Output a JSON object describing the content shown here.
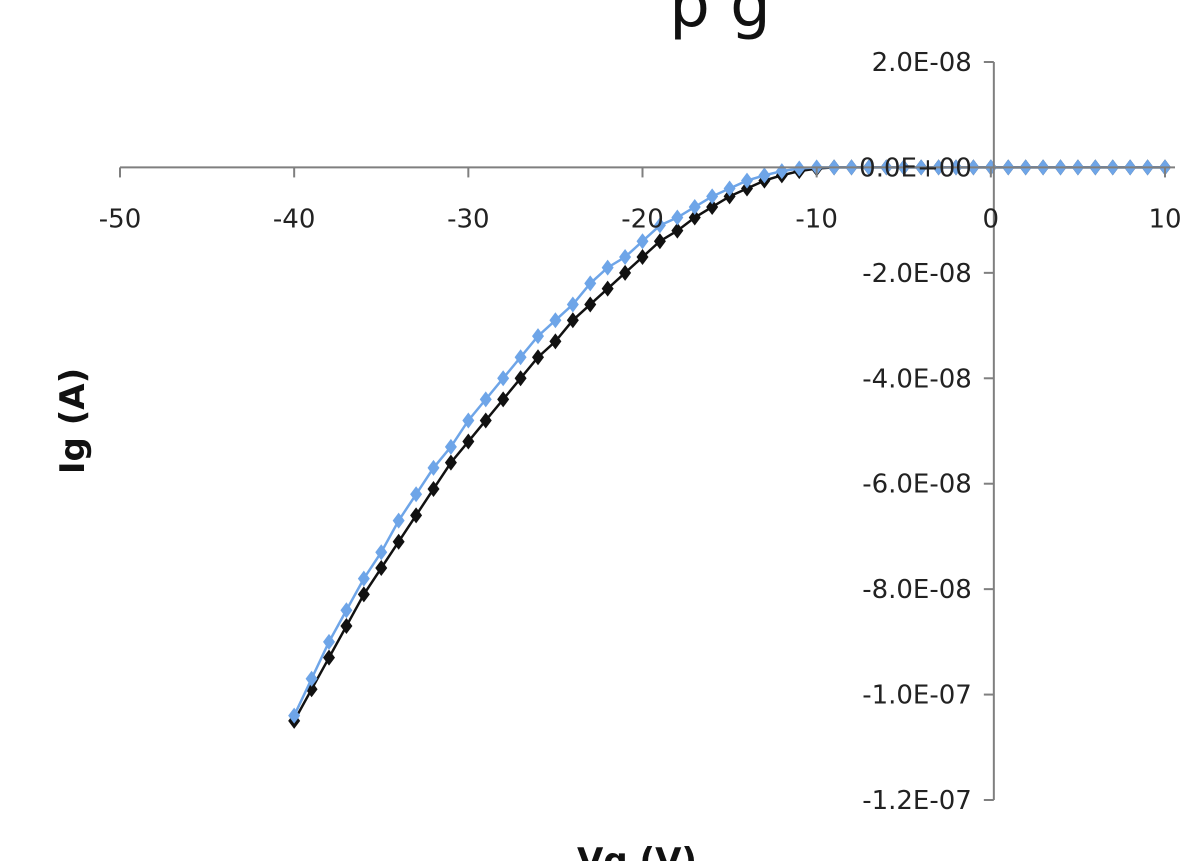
{
  "page": {
    "title_fragment": "p g"
  },
  "chart_data": {
    "type": "scatter",
    "title": "",
    "xlabel": "Vg (V)",
    "ylabel": "Ig (A)",
    "xlim": [
      -50,
      10
    ],
    "ylim": [
      -1.2e-07,
      2e-08
    ],
    "x_ticks": [
      -50,
      -40,
      -30,
      -20,
      -10,
      0,
      10
    ],
    "x_tick_labels": [
      "-50",
      "-40",
      "-30",
      "-20",
      "-10",
      "0",
      "10"
    ],
    "y_ticks": [
      2e-08,
      0,
      -2e-08,
      -4e-08,
      -6e-08,
      -8e-08,
      -1e-07,
      -1.2e-07
    ],
    "y_tick_labels": [
      "2.0E-08",
      "0.0E+00",
      "-2.0E-08",
      "-4.0E-08",
      "-6.0E-08",
      "-8.0E-08",
      "-1.0E-07",
      "-1.2E-07"
    ],
    "grid": false,
    "legend": "none",
    "series": [
      {
        "color": "#111111",
        "marker": "diamond",
        "x": [
          -40,
          -39,
          -38,
          -37,
          -36,
          -35,
          -34,
          -33,
          -32,
          -31,
          -30,
          -29,
          -28,
          -27,
          -26,
          -25,
          -24,
          -23,
          -22,
          -21,
          -20,
          -19,
          -18,
          -17,
          -16,
          -15,
          -14,
          -13,
          -12,
          -11,
          -10,
          -9,
          -8,
          -7,
          -6,
          -5,
          -4,
          -3,
          -2,
          -1,
          0,
          1,
          2,
          3,
          4,
          5,
          6,
          7,
          8,
          9,
          10
        ],
        "y": [
          -1.05e-07,
          -9.9e-08,
          -9.3e-08,
          -8.7e-08,
          -8.1e-08,
          -7.6e-08,
          -7.1e-08,
          -6.6e-08,
          -6.1e-08,
          -5.6e-08,
          -5.2e-08,
          -4.8e-08,
          -4.4e-08,
          -4e-08,
          -3.6e-08,
          -3.3e-08,
          -2.9e-08,
          -2.6e-08,
          -2.3e-08,
          -2e-08,
          -1.7e-08,
          -1.4e-08,
          -1.2e-08,
          -9.5e-09,
          -7.5e-09,
          -5.5e-09,
          -4e-09,
          -2.5e-09,
          -1.5e-09,
          -7e-10,
          -2e-10,
          0,
          0,
          0,
          0,
          0,
          0,
          0,
          0,
          0,
          0,
          0,
          0,
          0,
          0,
          0,
          0,
          0,
          0,
          0,
          0
        ]
      },
      {
        "color": "#6ea5e8",
        "marker": "diamond",
        "x": [
          -40,
          -39,
          -38,
          -37,
          -36,
          -35,
          -34,
          -33,
          -32,
          -31,
          -30,
          -29,
          -28,
          -27,
          -26,
          -25,
          -24,
          -23,
          -22,
          -21,
          -20,
          -19,
          -18,
          -17,
          -16,
          -15,
          -14,
          -13,
          -12,
          -11,
          -10,
          -9,
          -8,
          -7,
          -6,
          -5,
          -4,
          -3,
          -2,
          -1,
          0,
          1,
          2,
          3,
          4,
          5,
          6,
          7,
          8,
          9,
          10
        ],
        "y": [
          -1.04e-07,
          -9.7e-08,
          -9e-08,
          -8.4e-08,
          -7.8e-08,
          -7.3e-08,
          -6.7e-08,
          -6.2e-08,
          -5.7e-08,
          -5.3e-08,
          -4.8e-08,
          -4.4e-08,
          -4e-08,
          -3.6e-08,
          -3.2e-08,
          -2.9e-08,
          -2.6e-08,
          -2.2e-08,
          -1.9e-08,
          -1.7e-08,
          -1.4e-08,
          -1.1e-08,
          -9.5e-09,
          -7.5e-09,
          -5.5e-09,
          -4e-09,
          -2.5e-09,
          -1.5e-09,
          -7e-10,
          -2e-10,
          0,
          0,
          0,
          0,
          0,
          0,
          0,
          0,
          0,
          0,
          0,
          0,
          0,
          0,
          0,
          0,
          0,
          0,
          0,
          0,
          0
        ]
      }
    ]
  }
}
